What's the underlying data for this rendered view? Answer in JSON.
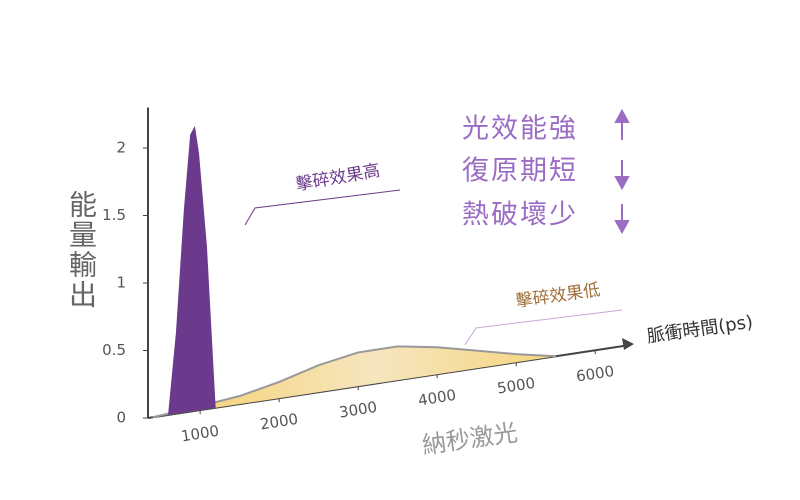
{
  "chart_data": {
    "type": "area",
    "y_label": "能量輸出",
    "x_label": "納秒激光",
    "x_axis_title": "脈衝時間(ps)",
    "annotations": [
      "擊碎效果高",
      "擊碎效果低"
    ],
    "effects": [
      "光效能強",
      "復原期短",
      "熱破壞少"
    ],
    "xlim": [
      340,
      6440
    ],
    "xticks": [
      1000,
      2000,
      3000,
      4000,
      5000,
      6000
    ],
    "ylim": [
      0,
      2.3
    ],
    "yticks": [
      0,
      0.5,
      1,
      1.5,
      2
    ],
    "series": [
      {
        "color": "#f7cf6a",
        "x": [
          400,
          1000,
          1500,
          2000,
          2500,
          3000,
          3500,
          4000,
          4500,
          5000,
          5500
        ],
        "values": [
          0,
          0.03,
          0.06,
          0.12,
          0.2,
          0.25,
          0.25,
          0.2,
          0.13,
          0.06,
          0
        ]
      },
      {
        "color": "#6b3a8c",
        "x": [
          600,
          700,
          800,
          880,
          930,
          980,
          1080,
          1190
        ],
        "values": [
          0,
          0.6,
          1.5,
          2.05,
          2.1,
          1.9,
          1.2,
          0
        ]
      }
    ]
  }
}
